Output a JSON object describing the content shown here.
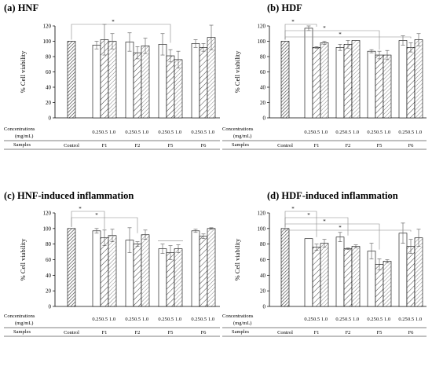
{
  "chart_data": [
    {
      "type": "bar",
      "title": "(a) HNF",
      "ylabel": "% Cell viability",
      "ylim": [
        0,
        120
      ],
      "yticks": [
        "0",
        "20",
        "40",
        "60",
        "80",
        "100",
        "120"
      ],
      "concentrations_label": "Concentrations",
      "units_label": "(mg/mL)",
      "samples_label": "Samples",
      "concentrations": [
        "0.25",
        "0.5",
        "1.0"
      ],
      "groups": [
        {
          "name": "Control",
          "values": [
            100
          ],
          "errors": [
            0
          ]
        },
        {
          "name": "F1",
          "values": [
            95,
            102,
            100
          ],
          "errors": [
            5,
            20,
            10
          ]
        },
        {
          "name": "F2",
          "values": [
            99,
            85,
            94
          ],
          "errors": [
            12,
            8,
            10
          ]
        },
        {
          "name": "F5",
          "values": [
            96,
            81,
            76
          ],
          "errors": [
            14,
            8,
            11
          ]
        },
        {
          "name": "F6",
          "values": [
            97,
            92,
            105
          ],
          "errors": [
            5,
            5,
            16
          ]
        }
      ],
      "significance": [
        {
          "from": "Control",
          "to": "F5",
          "label": "*"
        }
      ]
    },
    {
      "type": "bar",
      "title": "(b) HDF",
      "ylabel": "% Cell viability",
      "ylim": [
        0,
        120
      ],
      "yticks": [
        "0",
        "20",
        "40",
        "60",
        "80",
        "100",
        "120"
      ],
      "concentrations_label": "Concentrations",
      "units_label": "(mg/mL)",
      "samples_label": "Samples",
      "concentrations": [
        "0.25",
        "0.5",
        "1.0"
      ],
      "groups": [
        {
          "name": "Control",
          "values": [
            100
          ],
          "errors": [
            0
          ]
        },
        {
          "name": "F1",
          "values": [
            117,
            92,
            98
          ],
          "errors": [
            3,
            1,
            2
          ]
        },
        {
          "name": "F2",
          "values": [
            92,
            96,
            101
          ],
          "errors": [
            4,
            5,
            0
          ]
        },
        {
          "name": "F5",
          "values": [
            87,
            82,
            82
          ],
          "errors": [
            2,
            5,
            6
          ]
        },
        {
          "name": "F6",
          "values": [
            101,
            92,
            102
          ],
          "errors": [
            6,
            6,
            8
          ]
        }
      ],
      "significance": [
        {
          "from": "Control",
          "to": "F1",
          "label": "*"
        },
        {
          "from": "Control",
          "to": "F5",
          "label": "*"
        },
        {
          "from": "Control",
          "to": "F6",
          "label": "*"
        }
      ]
    },
    {
      "type": "bar",
      "title": "(c) HNF-induced inflammation",
      "ylabel": "% Cell viability",
      "ylim": [
        0,
        120
      ],
      "yticks": [
        "0",
        "20",
        "40",
        "60",
        "80",
        "100",
        "120"
      ],
      "concentrations_label": "Concentrations",
      "units_label": "(mg/mL)",
      "samples_label": "Samples",
      "concentrations": [
        "0.25",
        "0.5",
        "1.0"
      ],
      "groups": [
        {
          "name": "Control",
          "values": [
            100
          ],
          "errors": [
            0
          ]
        },
        {
          "name": "F1",
          "values": [
            97,
            88,
            91
          ],
          "errors": [
            3,
            10,
            8
          ]
        },
        {
          "name": "F2",
          "values": [
            85,
            80,
            92
          ],
          "errors": [
            16,
            3,
            6
          ]
        },
        {
          "name": "F5",
          "values": [
            74,
            69,
            74
          ],
          "errors": [
            6,
            9,
            5
          ]
        },
        {
          "name": "F6",
          "values": [
            97,
            90,
            100
          ],
          "errors": [
            2,
            3,
            1
          ]
        }
      ],
      "significance": [
        {
          "from": "Control",
          "to": "F1",
          "label": "*"
        },
        {
          "from": "Control",
          "to": "F2",
          "label": "*"
        },
        {
          "from": "F5",
          "to": "F5",
          "label": ""
        }
      ]
    },
    {
      "type": "bar",
      "title": "(d) HDF-induced inflammation",
      "ylabel": "% Cell viability",
      "ylim": [
        0,
        120
      ],
      "yticks": [
        "0",
        "20",
        "40",
        "60",
        "80",
        "100",
        "120"
      ],
      "concentrations_label": "Concentrations",
      "units_label": "(mg/mL)",
      "samples_label": "Samples",
      "concentrations": [
        "0.25",
        "0.5",
        "1.0"
      ],
      "groups": [
        {
          "name": "Control",
          "values": [
            100
          ],
          "errors": [
            0
          ]
        },
        {
          "name": "F1",
          "values": [
            87,
            76,
            81
          ],
          "errors": [
            0,
            4,
            5
          ]
        },
        {
          "name": "F2",
          "values": [
            89,
            74,
            77
          ],
          "errors": [
            6,
            1,
            2
          ]
        },
        {
          "name": "F5",
          "values": [
            71,
            54,
            58
          ],
          "errors": [
            10,
            7,
            2
          ]
        },
        {
          "name": "F6",
          "values": [
            94,
            77,
            88
          ],
          "errors": [
            13,
            9,
            11
          ]
        }
      ],
      "significance": [
        {
          "from": "Control",
          "to": "F1",
          "label": "*"
        },
        {
          "from": "Control",
          "to": "F2",
          "label": "*"
        },
        {
          "from": "Control",
          "to": "F5",
          "label": "*"
        },
        {
          "from": "Control",
          "to": "F6",
          "label": "*"
        }
      ]
    }
  ]
}
